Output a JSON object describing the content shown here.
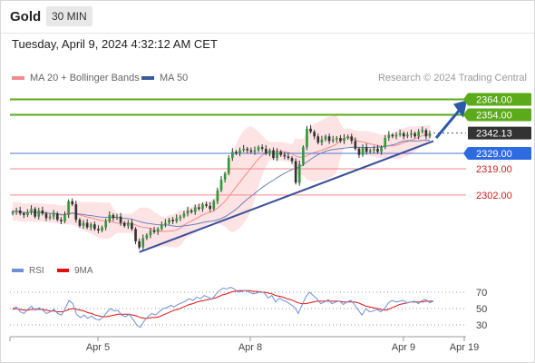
{
  "header": {
    "symbol": "Gold",
    "timeframe": "30 MIN"
  },
  "datetime": "Tuesday, April 9, 2024 4:32:12 AM CET",
  "legend": [
    {
      "label": "MA 20 + Bollinger Bands",
      "color": "#f28c8c"
    },
    {
      "label": "MA 50",
      "color": "#3a5a9a"
    }
  ],
  "credit": "Research © 2024 Trading Central",
  "rsi_legend": [
    {
      "label": "RSI",
      "color": "#6f8fd8"
    },
    {
      "label": "9MA",
      "color": "#e01010"
    }
  ],
  "chart_data": {
    "type": "candlestick",
    "x_ticks": [
      "Apr 5",
      "Apr 8",
      "Apr 9",
      "Apr 19"
    ],
    "price_levels": [
      {
        "value": 2364.0,
        "label": "2364.00",
        "style": "green"
      },
      {
        "value": 2354.0,
        "label": "2354.00",
        "style": "green"
      },
      {
        "value": 2342.13,
        "label": "2342.13",
        "style": "current"
      },
      {
        "value": 2329.0,
        "label": "2329.00",
        "style": "blue"
      },
      {
        "value": 2319.0,
        "label": "2319.00",
        "style": "red"
      },
      {
        "value": 2302.0,
        "label": "2302.00",
        "style": "red"
      }
    ],
    "close_path": [
      2291,
      2292,
      2290,
      2289,
      2291,
      2293,
      2288,
      2292,
      2290,
      2287,
      2288,
      2290,
      2286,
      2285,
      2289,
      2298,
      2296,
      2286,
      2282,
      2284,
      2281,
      2283,
      2280,
      2279,
      2281,
      2285,
      2289,
      2287,
      2288,
      2284,
      2282,
      2284,
      2280,
      2272,
      2268,
      2274,
      2276,
      2279,
      2278,
      2280,
      2283,
      2284,
      2286,
      2285,
      2287,
      2288,
      2290,
      2292,
      2291,
      2294,
      2293,
      2296,
      2295,
      2293,
      2298,
      2305,
      2312,
      2316,
      2326,
      2330,
      2329,
      2331,
      2332,
      2331,
      2330,
      2331,
      2333,
      2332,
      2329,
      2331,
      2326,
      2330,
      2328,
      2327,
      2326,
      2324,
      2310,
      2322,
      2333,
      2345,
      2343,
      2340,
      2336,
      2338,
      2340,
      2337,
      2338,
      2339,
      2337,
      2339,
      2340,
      2337,
      2332,
      2328,
      2333,
      2330,
      2331,
      2332,
      2330,
      2333,
      2339,
      2341,
      2340,
      2341,
      2342,
      2340,
      2341,
      2342,
      2340,
      2343,
      2344,
      2340,
      2342
    ],
    "rsi": {
      "levels": [
        70,
        50,
        30
      ],
      "rsi_path": [
        50,
        52,
        46,
        44,
        49,
        53,
        48,
        51,
        48,
        44,
        46,
        49,
        44,
        42,
        50,
        60,
        56,
        43,
        39,
        42,
        38,
        41,
        37,
        36,
        39,
        45,
        50,
        47,
        48,
        42,
        40,
        43,
        37,
        30,
        27,
        35,
        40,
        44,
        42,
        46,
        50,
        51,
        54,
        52,
        55,
        57,
        59,
        62,
        60,
        64,
        62,
        66,
        64,
        61,
        67,
        72,
        75,
        74,
        76,
        74,
        70,
        71,
        72,
        70,
        68,
        69,
        71,
        69,
        63,
        66,
        58,
        63,
        60,
        58,
        55,
        52,
        44,
        54,
        64,
        70,
        66,
        62,
        56,
        58,
        61,
        56,
        58,
        59,
        55,
        58,
        60,
        55,
        48,
        42,
        50,
        46,
        47,
        49,
        46,
        50,
        57,
        60,
        58,
        59,
        60,
        57,
        58,
        59,
        56,
        60,
        61,
        57,
        59
      ],
      "ma_path": [
        49,
        50,
        49,
        48,
        48,
        49,
        49,
        49,
        49,
        48,
        47,
        47,
        46,
        46,
        47,
        49,
        50,
        49,
        48,
        47,
        45,
        44,
        42,
        41,
        40,
        40,
        41,
        42,
        43,
        43,
        43,
        43,
        42,
        41,
        39,
        38,
        38,
        39,
        39,
        40,
        42,
        44,
        46,
        48,
        49,
        51,
        53,
        55,
        56,
        58,
        59,
        60,
        61,
        62,
        63,
        65,
        67,
        68,
        70,
        71,
        72,
        72,
        72,
        72,
        71,
        71,
        70,
        70,
        69,
        68,
        66,
        65,
        64,
        62,
        61,
        59,
        57,
        56,
        56,
        57,
        58,
        59,
        59,
        59,
        59,
        59,
        59,
        59,
        58,
        58,
        58,
        58,
        57,
        55,
        53,
        52,
        51,
        50,
        49,
        48,
        49,
        51,
        53,
        55,
        56,
        57,
        58,
        58,
        58,
        58,
        59,
        59,
        59
      ]
    }
  }
}
